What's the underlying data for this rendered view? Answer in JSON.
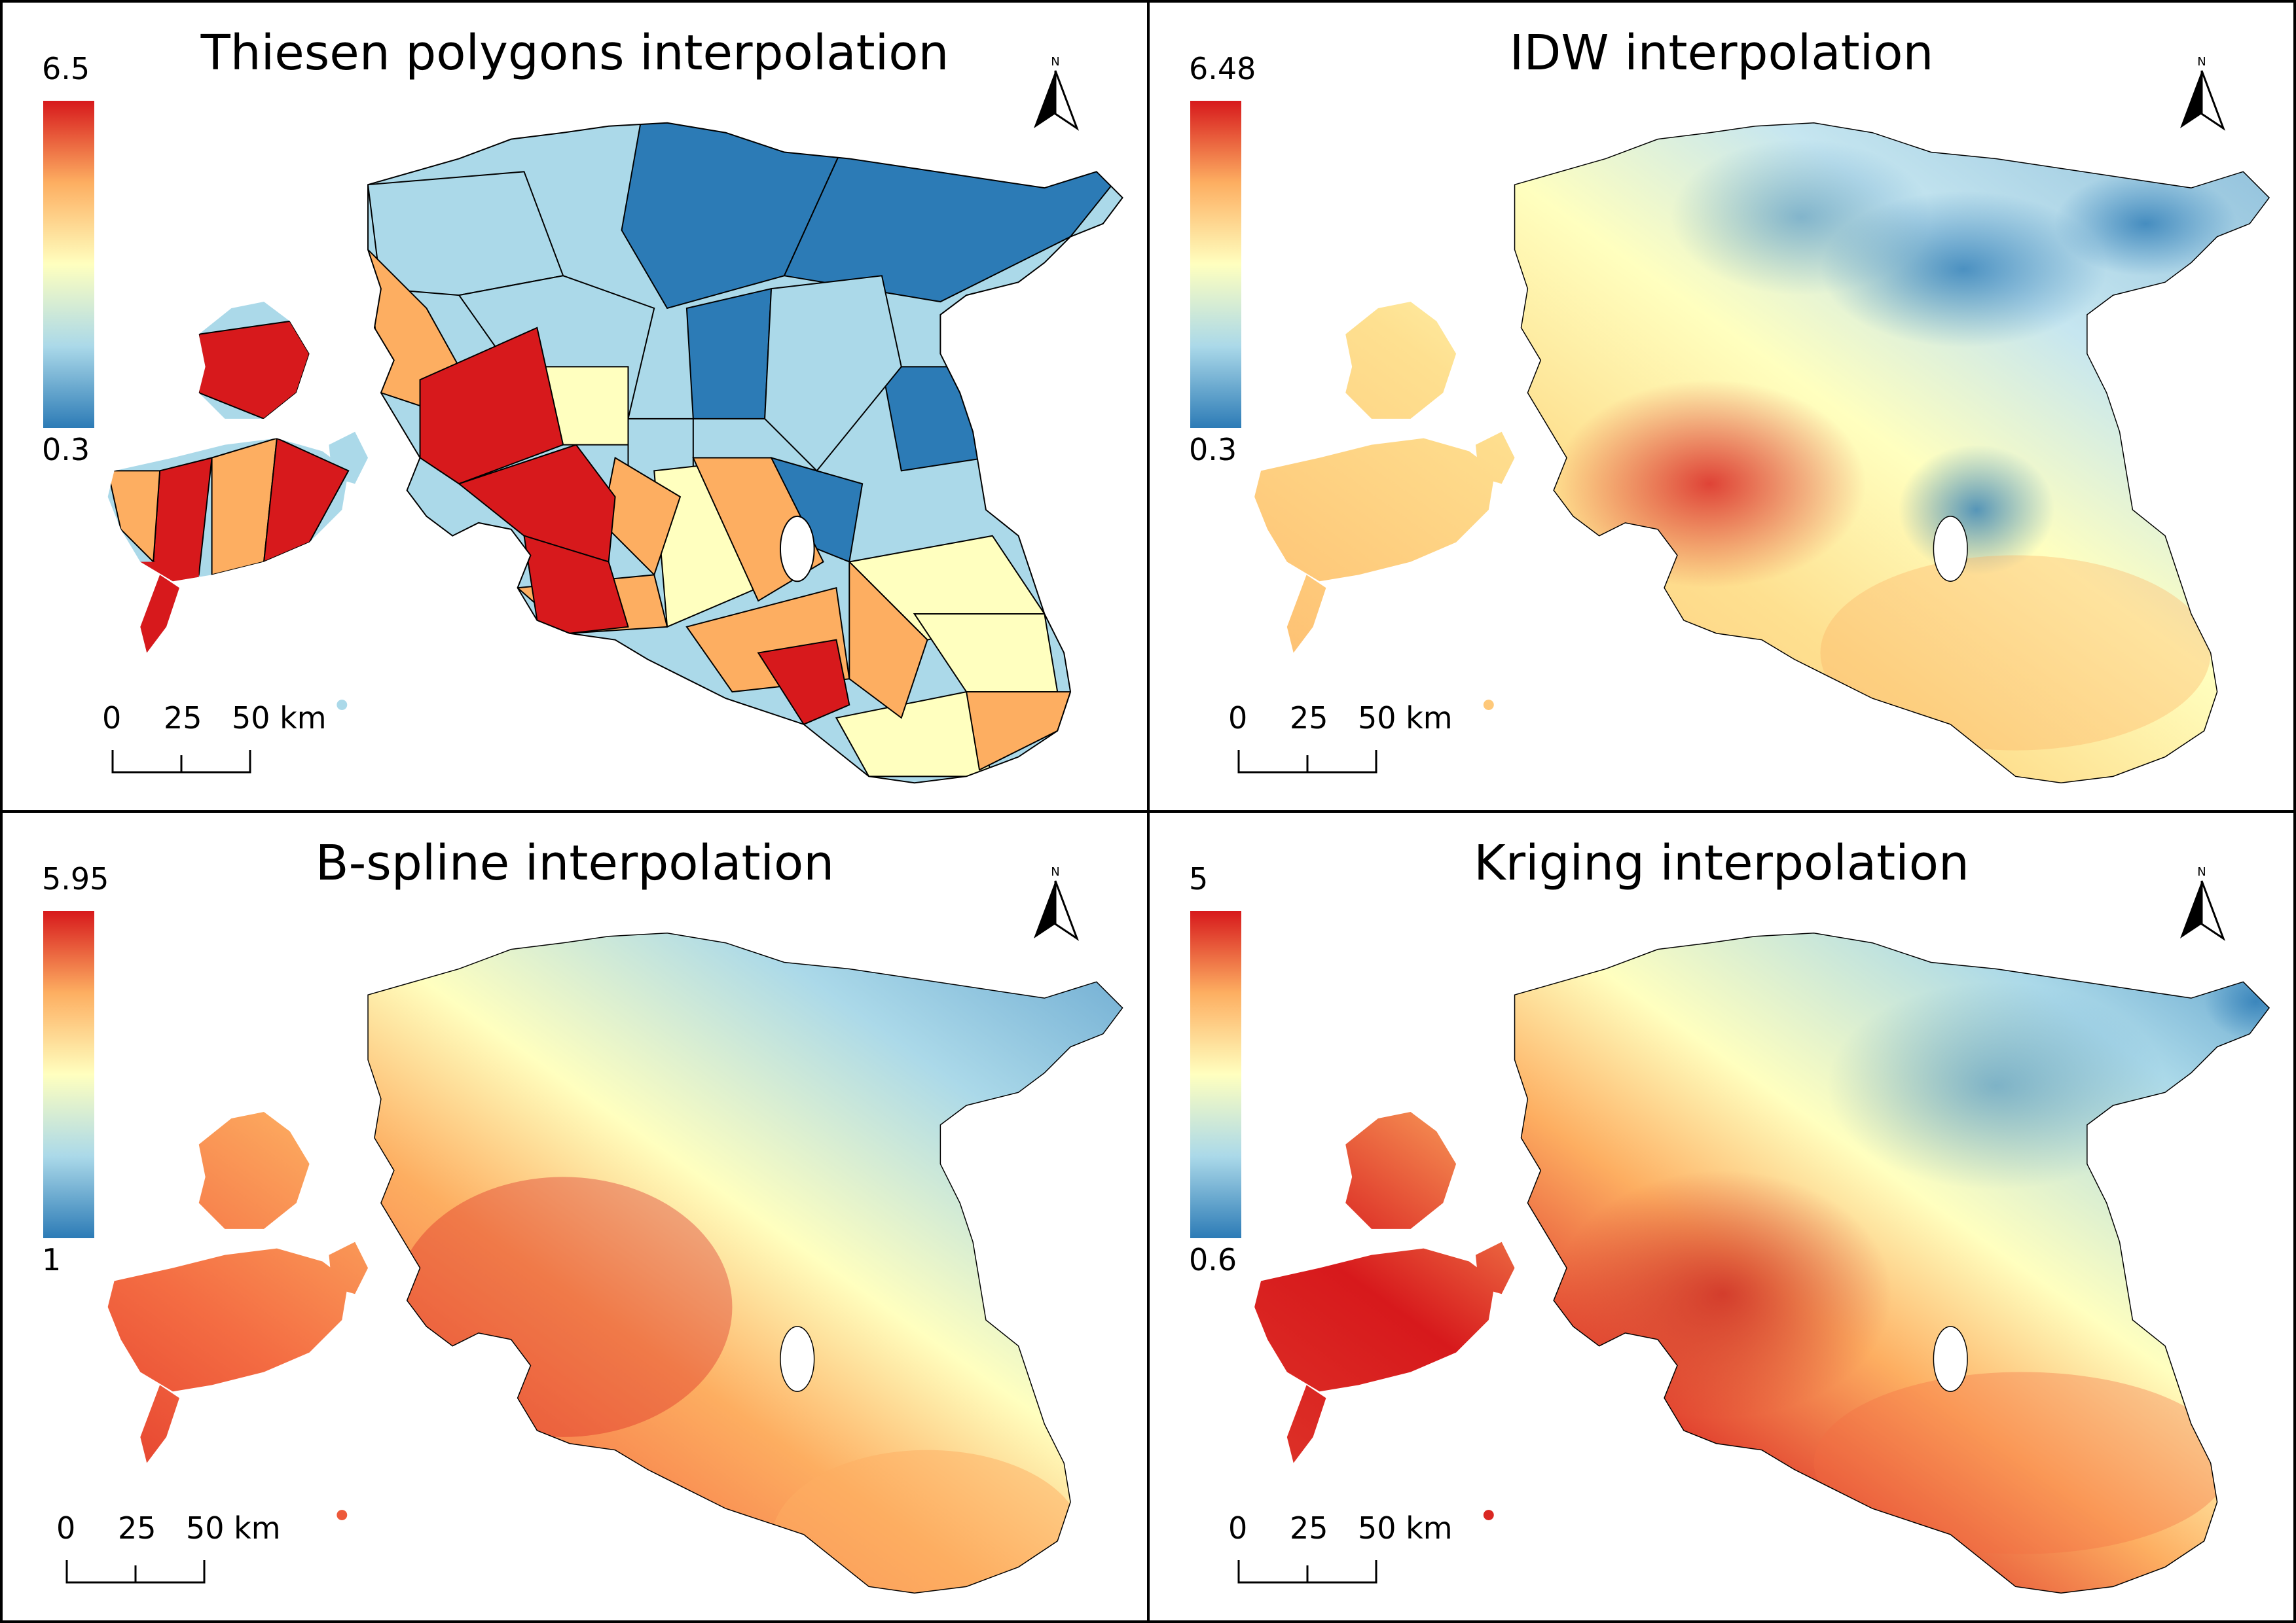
{
  "panels": [
    {
      "title": "Thiesen polygons interpolation",
      "legend_max": "6.5",
      "legend_min": "0.3",
      "method": "thiessen",
      "scale": {
        "l0": "0",
        "l1": "25",
        "l2": "50 km"
      }
    },
    {
      "title": "IDW interpolation",
      "legend_max": "6.48",
      "legend_min": "0.3",
      "method": "idw",
      "scale": {
        "l0": "0",
        "l1": "25",
        "l2": "50 km"
      }
    },
    {
      "title": "B-spline interpolation",
      "legend_max": "5.95",
      "legend_min": "1",
      "method": "bspline",
      "scale": {
        "l0": "0",
        "l1": "25",
        "l2": "50 km"
      }
    },
    {
      "title": "Kriging interpolation",
      "legend_max": "5",
      "legend_min": "0.6",
      "method": "kriging",
      "scale": {
        "l0": "0",
        "l1": "25",
        "l2": "50 km"
      }
    }
  ],
  "north_label": "N",
  "colors": {
    "high": "#d7191c",
    "mid_high": "#fdae61",
    "mid": "#ffffbf",
    "mid_low": "#abd9e9",
    "low": "#2c7bb6"
  },
  "icons": {
    "north": "north-arrow-icon"
  }
}
